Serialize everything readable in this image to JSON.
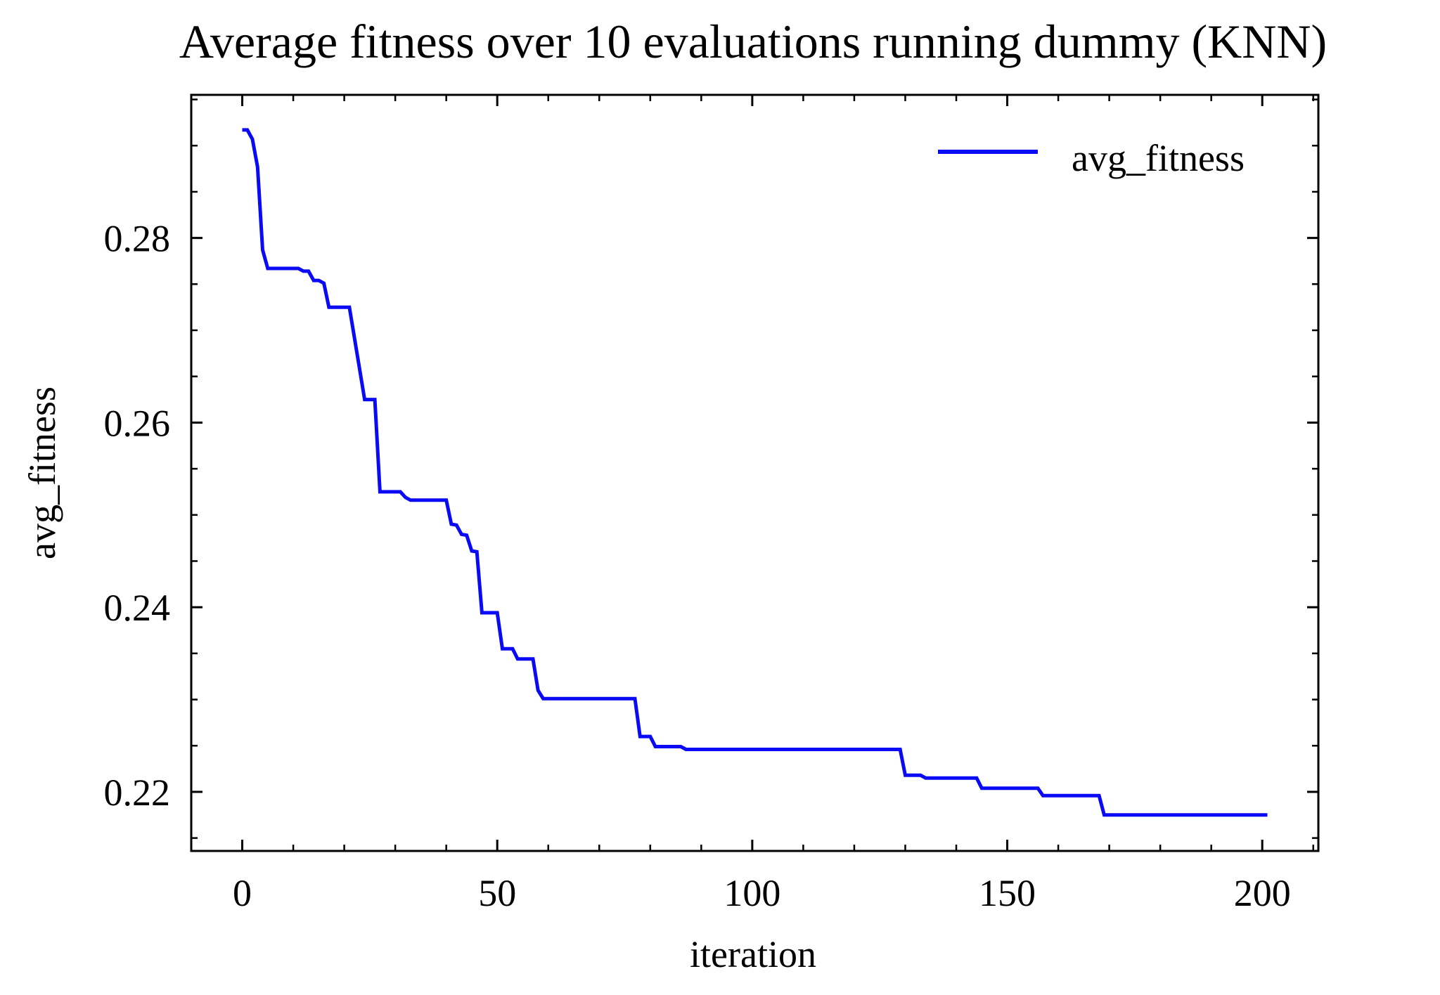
{
  "chart_data": {
    "type": "line",
    "title": "Average fitness over 10 evaluations running dummy (KNN)",
    "xlabel": "iteration",
    "ylabel": "avg_fitness",
    "xlim": [
      -10,
      211
    ],
    "ylim": [
      0.2136,
      0.2955
    ],
    "x_ticks": [
      0,
      50,
      100,
      150,
      200
    ],
    "x_tick_labels": [
      "0",
      "50",
      "100",
      "150",
      "200"
    ],
    "x_minor_step": 10,
    "y_ticks": [
      0.22,
      0.24,
      0.26,
      0.28
    ],
    "y_tick_labels": [
      "0.22",
      "0.24",
      "0.26",
      "0.28"
    ],
    "y_minor_step": 0.005,
    "grid": false,
    "legend_position": "top-right",
    "series": [
      {
        "name": "avg_fitness",
        "color": "#0a0af5",
        "points": [
          [
            0,
            0.2917
          ],
          [
            1,
            0.2917
          ],
          [
            2,
            0.2907
          ],
          [
            3,
            0.2877
          ],
          [
            4,
            0.2787
          ],
          [
            5,
            0.2767
          ],
          [
            11,
            0.2767
          ],
          [
            12,
            0.2764
          ],
          [
            13,
            0.2764
          ],
          [
            14,
            0.2754
          ],
          [
            15,
            0.2754
          ],
          [
            16,
            0.2751
          ],
          [
            17,
            0.2725
          ],
          [
            21,
            0.2725
          ],
          [
            24,
            0.2625
          ],
          [
            26,
            0.2625
          ],
          [
            27,
            0.2525
          ],
          [
            31,
            0.2525
          ],
          [
            32,
            0.2519
          ],
          [
            33,
            0.2516
          ],
          [
            40,
            0.2516
          ],
          [
            41,
            0.249
          ],
          [
            42,
            0.2489
          ],
          [
            43,
            0.2479
          ],
          [
            44,
            0.2478
          ],
          [
            45,
            0.2461
          ],
          [
            46,
            0.246
          ],
          [
            47,
            0.2394
          ],
          [
            50,
            0.2394
          ],
          [
            51,
            0.2355
          ],
          [
            53,
            0.2355
          ],
          [
            54,
            0.2344
          ],
          [
            57,
            0.2344
          ],
          [
            58,
            0.231
          ],
          [
            59,
            0.2301
          ],
          [
            77,
            0.2301
          ],
          [
            78,
            0.226
          ],
          [
            80,
            0.226
          ],
          [
            81,
            0.2249
          ],
          [
            86,
            0.2249
          ],
          [
            87,
            0.2246
          ],
          [
            129,
            0.2246
          ],
          [
            130,
            0.2218
          ],
          [
            133,
            0.2218
          ],
          [
            134,
            0.2215
          ],
          [
            144,
            0.2215
          ],
          [
            145,
            0.2204
          ],
          [
            156,
            0.2204
          ],
          [
            157,
            0.2196
          ],
          [
            168,
            0.2196
          ],
          [
            169,
            0.2175
          ],
          [
            201,
            0.2175
          ]
        ]
      }
    ]
  }
}
